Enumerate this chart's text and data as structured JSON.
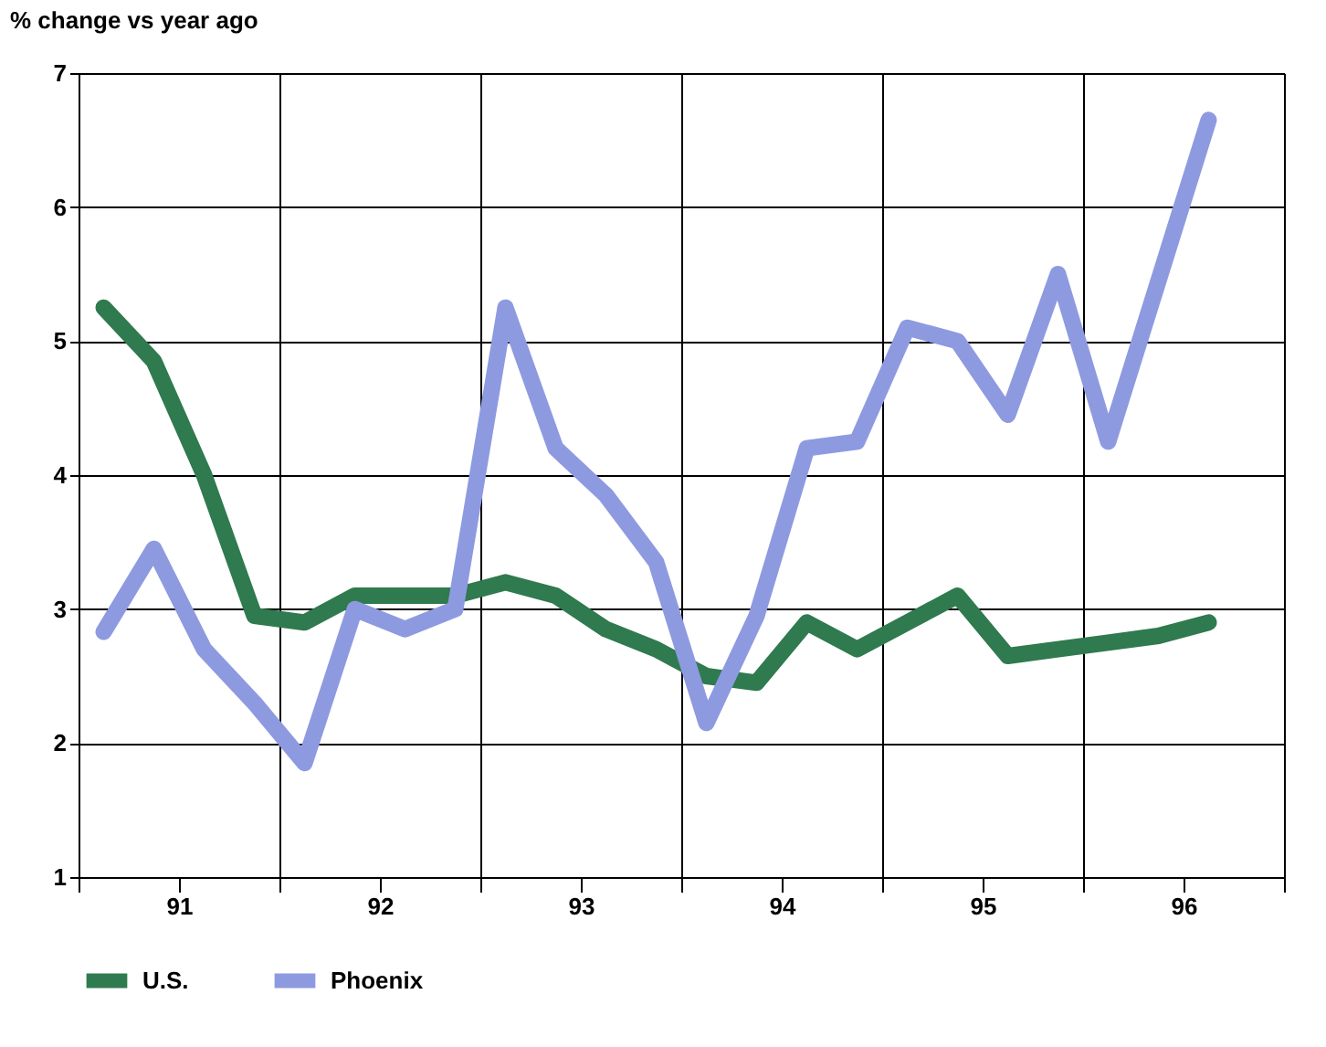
{
  "chart_data": {
    "type": "line",
    "ylabel": "% change vs year ago",
    "xlim": [
      90.5,
      96.5
    ],
    "xticks": [
      {
        "value": 90.5,
        "label": null
      },
      91,
      {
        "value": 91.5,
        "label": null
      },
      92,
      {
        "value": 92.5,
        "label": null
      },
      93,
      {
        "value": 93.5,
        "label": null
      },
      94,
      {
        "value": 94.5,
        "label": null
      },
      95,
      {
        "value": 95.5,
        "label": null
      },
      96,
      {
        "value": 96.5,
        "label": null
      }
    ],
    "ylim": [
      1,
      7
    ],
    "yticks": [
      1,
      2,
      3,
      4,
      5,
      6,
      7
    ],
    "grid": true,
    "legend": "bottom",
    "series": [
      {
        "name": "U.S.",
        "color": "#2f7a4e",
        "x": [
          90.625,
          90.875,
          91.125,
          91.375,
          91.625,
          91.875,
          92.125,
          92.375,
          92.625,
          92.875,
          93.125,
          93.375,
          93.625,
          93.875,
          94.125,
          94.375,
          94.625,
          94.875,
          95.125,
          95.375,
          95.625,
          95.875,
          96.125
        ],
        "values": [
          5.25,
          4.85,
          4.0,
          2.95,
          2.9,
          3.1,
          3.1,
          3.1,
          3.2,
          3.1,
          2.85,
          2.7,
          2.5,
          2.45,
          2.9,
          2.7,
          2.9,
          3.1,
          2.65,
          2.7,
          2.75,
          2.8,
          2.9
        ]
      },
      {
        "name": "Phoenix",
        "color": "#8e9ae0",
        "x": [
          90.625,
          90.875,
          91.125,
          91.375,
          91.625,
          91.875,
          92.125,
          92.375,
          92.625,
          92.875,
          93.125,
          93.375,
          93.625,
          93.875,
          94.125,
          94.375,
          94.625,
          94.875,
          95.125,
          95.375,
          95.625,
          96.125
        ],
        "values": [
          2.83,
          3.45,
          2.7,
          2.3,
          1.85,
          3.0,
          2.85,
          3.0,
          5.25,
          4.2,
          3.85,
          3.35,
          2.15,
          2.95,
          4.2,
          4.25,
          5.1,
          5.0,
          4.45,
          5.5,
          4.25,
          6.65
        ]
      }
    ]
  }
}
